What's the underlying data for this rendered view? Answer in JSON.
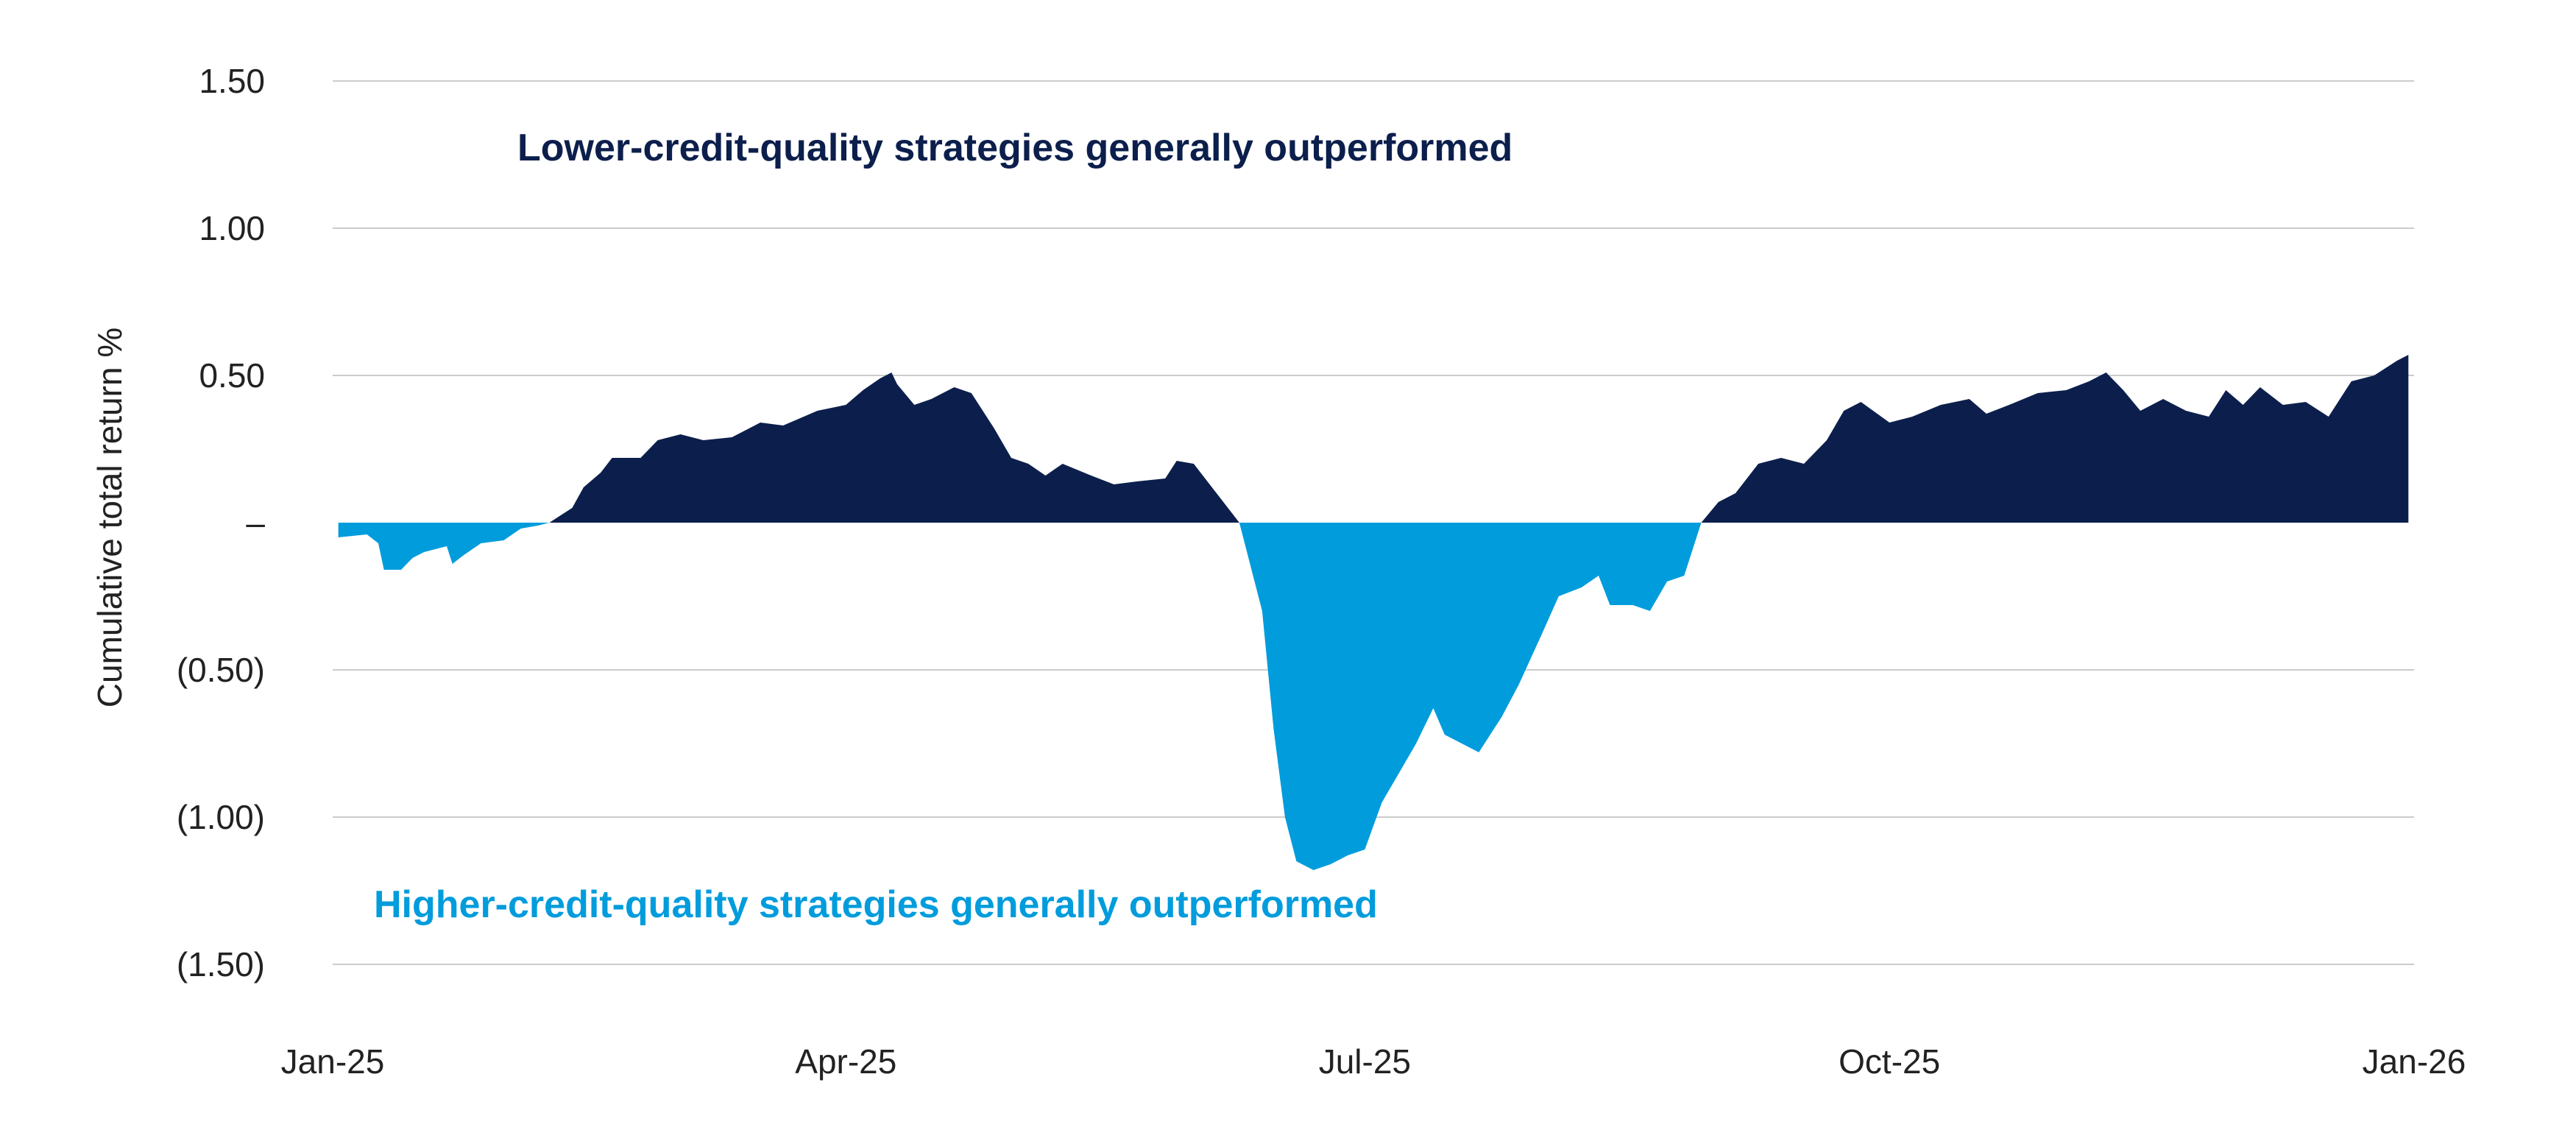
{
  "chart_data": {
    "type": "area",
    "ylabel": "Cumulative total return %",
    "ylim": [
      -1.5,
      1.5
    ],
    "y_ticks": [
      {
        "value": 1.5,
        "label": "1.50"
      },
      {
        "value": 1.0,
        "label": "1.00"
      },
      {
        "value": 0.5,
        "label": "0.50"
      },
      {
        "value": 0.0,
        "label": "–"
      },
      {
        "value": -0.5,
        "label": "(0.50)"
      },
      {
        "value": -1.0,
        "label": "(1.00)"
      },
      {
        "value": -1.5,
        "label": "(1.50)"
      }
    ],
    "x_ticks": [
      {
        "date": "2025-01-01",
        "label": "Jan-25"
      },
      {
        "date": "2025-04-01",
        "label": "Apr-25"
      },
      {
        "date": "2025-07-01",
        "label": "Jul-25"
      },
      {
        "date": "2025-10-01",
        "label": "Oct-25"
      },
      {
        "date": "2026-01-01",
        "label": "Jan-26"
      }
    ],
    "grid": true,
    "colors": {
      "positive": "#0c1f4c",
      "negative": "#009cdc",
      "grid": "#cccccc"
    },
    "annotations": [
      {
        "text": "Lower-credit-quality strategies generally outperformed",
        "color": "#0c1f4c"
      },
      {
        "text": "Higher-credit-quality strategies generally outperformed",
        "color": "#009cdc"
      }
    ],
    "points": [
      [
        "2025-01-02",
        -0.05
      ],
      [
        "2025-01-07",
        -0.04
      ],
      [
        "2025-01-09",
        -0.07
      ],
      [
        "2025-01-10",
        -0.16
      ],
      [
        "2025-01-13",
        -0.16
      ],
      [
        "2025-01-15",
        -0.12
      ],
      [
        "2025-01-17",
        -0.1
      ],
      [
        "2025-01-21",
        -0.08
      ],
      [
        "2025-01-22",
        -0.14
      ],
      [
        "2025-01-24",
        -0.11
      ],
      [
        "2025-01-27",
        -0.07
      ],
      [
        "2025-01-31",
        -0.06
      ],
      [
        "2025-02-03",
        -0.02
      ],
      [
        "2025-02-06",
        -0.01
      ],
      [
        "2025-02-08",
        0.0
      ],
      [
        "2025-02-12",
        0.05
      ],
      [
        "2025-02-14",
        0.12
      ],
      [
        "2025-02-17",
        0.17
      ],
      [
        "2025-02-19",
        0.22
      ],
      [
        "2025-02-24",
        0.22
      ],
      [
        "2025-02-27",
        0.28
      ],
      [
        "2025-03-03",
        0.3
      ],
      [
        "2025-03-07",
        0.28
      ],
      [
        "2025-03-12",
        0.29
      ],
      [
        "2025-03-17",
        0.34
      ],
      [
        "2025-03-21",
        0.33
      ],
      [
        "2025-03-27",
        0.38
      ],
      [
        "2025-04-01",
        0.4
      ],
      [
        "2025-04-04",
        0.45
      ],
      [
        "2025-04-07",
        0.49
      ],
      [
        "2025-04-09",
        0.51
      ],
      [
        "2025-04-10",
        0.47
      ],
      [
        "2025-04-13",
        0.4
      ],
      [
        "2025-04-16",
        0.42
      ],
      [
        "2025-04-20",
        0.46
      ],
      [
        "2025-04-23",
        0.44
      ],
      [
        "2025-04-27",
        0.32
      ],
      [
        "2025-04-30",
        0.22
      ],
      [
        "2025-05-03",
        0.2
      ],
      [
        "2025-05-06",
        0.16
      ],
      [
        "2025-05-09",
        0.2
      ],
      [
        "2025-05-14",
        0.16
      ],
      [
        "2025-05-18",
        0.13
      ],
      [
        "2025-05-22",
        0.14
      ],
      [
        "2025-05-27",
        0.15
      ],
      [
        "2025-05-29",
        0.21
      ],
      [
        "2025-06-01",
        0.2
      ],
      [
        "2025-06-05",
        0.1
      ],
      [
        "2025-06-09",
        0.0
      ],
      [
        "2025-06-13",
        -0.3
      ],
      [
        "2025-06-15",
        -0.7
      ],
      [
        "2025-06-17",
        -1.0
      ],
      [
        "2025-06-19",
        -1.15
      ],
      [
        "2025-06-22",
        -1.18
      ],
      [
        "2025-06-25",
        -1.16
      ],
      [
        "2025-06-28",
        -1.13
      ],
      [
        "2025-07-01",
        -1.11
      ],
      [
        "2025-07-04",
        -0.95
      ],
      [
        "2025-07-07",
        -0.85
      ],
      [
        "2025-07-10",
        -0.75
      ],
      [
        "2025-07-13",
        -0.63
      ],
      [
        "2025-07-15",
        -0.72
      ],
      [
        "2025-07-18",
        -0.75
      ],
      [
        "2025-07-21",
        -0.78
      ],
      [
        "2025-07-25",
        -0.66
      ],
      [
        "2025-07-28",
        -0.55
      ],
      [
        "2025-08-01",
        -0.38
      ],
      [
        "2025-08-04",
        -0.25
      ],
      [
        "2025-08-08",
        -0.22
      ],
      [
        "2025-08-11",
        -0.18
      ],
      [
        "2025-08-13",
        -0.28
      ],
      [
        "2025-08-17",
        -0.28
      ],
      [
        "2025-08-20",
        -0.3
      ],
      [
        "2025-08-23",
        -0.2
      ],
      [
        "2025-08-26",
        -0.18
      ],
      [
        "2025-08-29",
        0.0
      ],
      [
        "2025-09-01",
        0.07
      ],
      [
        "2025-09-04",
        0.1
      ],
      [
        "2025-09-08",
        0.2
      ],
      [
        "2025-09-12",
        0.22
      ],
      [
        "2025-09-16",
        0.2
      ],
      [
        "2025-09-20",
        0.28
      ],
      [
        "2025-09-23",
        0.38
      ],
      [
        "2025-09-26",
        0.41
      ],
      [
        "2025-10-01",
        0.34
      ],
      [
        "2025-10-05",
        0.36
      ],
      [
        "2025-10-10",
        0.4
      ],
      [
        "2025-10-15",
        0.42
      ],
      [
        "2025-10-18",
        0.37
      ],
      [
        "2025-10-22",
        0.4
      ],
      [
        "2025-10-27",
        0.44
      ],
      [
        "2025-11-01",
        0.45
      ],
      [
        "2025-11-05",
        0.48
      ],
      [
        "2025-11-08",
        0.51
      ],
      [
        "2025-11-11",
        0.45
      ],
      [
        "2025-11-14",
        0.38
      ],
      [
        "2025-11-18",
        0.42
      ],
      [
        "2025-11-22",
        0.38
      ],
      [
        "2025-11-26",
        0.36
      ],
      [
        "2025-11-29",
        0.45
      ],
      [
        "2025-12-02",
        0.4
      ],
      [
        "2025-12-05",
        0.46
      ],
      [
        "2025-12-09",
        0.4
      ],
      [
        "2025-12-13",
        0.41
      ],
      [
        "2025-12-17",
        0.36
      ],
      [
        "2025-12-21",
        0.48
      ],
      [
        "2025-12-25",
        0.5
      ],
      [
        "2025-12-29",
        0.55
      ],
      [
        "2025-12-31",
        0.57
      ]
    ],
    "x_tail_dates": [
      "2025-06-09",
      "2026-01-01"
    ]
  }
}
